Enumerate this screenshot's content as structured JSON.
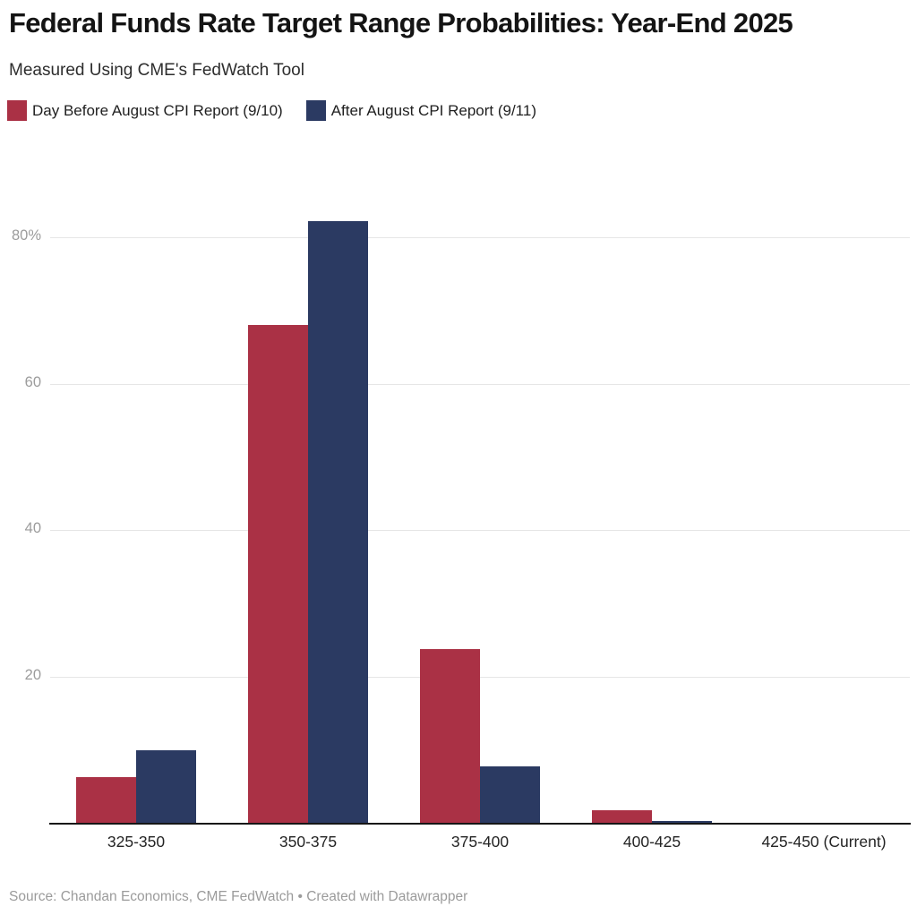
{
  "header": {
    "title": "Federal Funds Rate Target Range Probabilities: Year-End 2025",
    "subtitle": "Measured Using CME's FedWatch Tool"
  },
  "footer": {
    "text": "Source: Chandan Economics, CME FedWatch • Created with Datawrapper"
  },
  "colors": {
    "series_before": "#AA3145",
    "series_after": "#2B3A62",
    "gridline": "#e6e6e6",
    "axis_line": "#161616",
    "tick_label": "#9c9c9c",
    "category_label": "#242424"
  },
  "chart_data": {
    "type": "bar",
    "title": "Federal Funds Rate Target Range Probabilities: Year-End 2025",
    "subtitle": "Measured Using CME's FedWatch Tool",
    "categories": [
      "325-350",
      "350-375",
      "375-400",
      "400-425",
      "425-450 (Current)"
    ],
    "series": [
      {
        "name": "Day Before August CPI Report (9/10)",
        "color": "#AA3145",
        "values": [
          6.2,
          68.0,
          23.8,
          1.7,
          0.0
        ]
      },
      {
        "name": "After August CPI Report (9/11)",
        "color": "#2B3A62",
        "values": [
          9.9,
          82.2,
          7.7,
          0.3,
          0.0
        ]
      }
    ],
    "xlabel": "",
    "ylabel": "",
    "ylim": [
      0,
      88
    ],
    "yticks": [
      20,
      40,
      60,
      80
    ],
    "ytick_labels": [
      "20",
      "40",
      "60",
      "80%"
    ],
    "grid": true,
    "legend_position": "top"
  }
}
